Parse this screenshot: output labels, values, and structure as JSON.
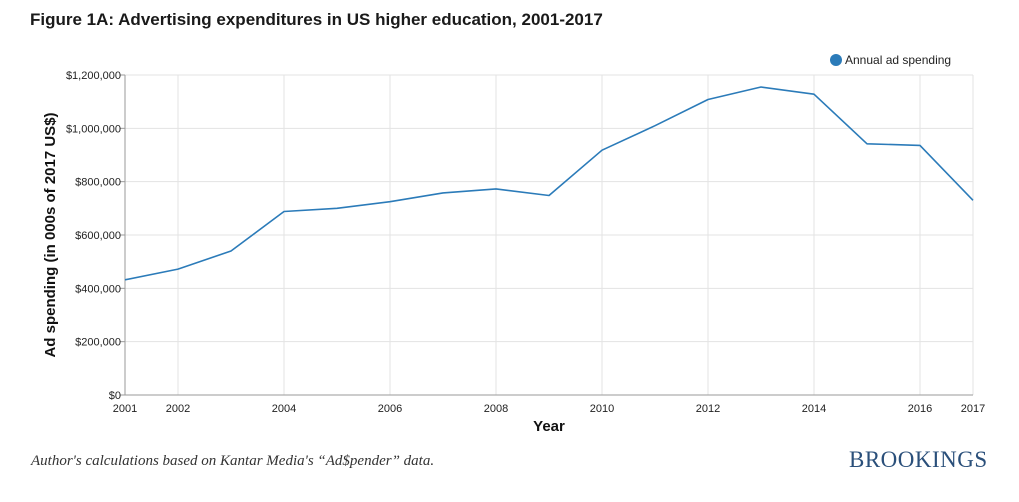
{
  "chart_data": {
    "type": "line",
    "title": "Figure 1A: Advertising expenditures in US higher education, 2001-2017",
    "xlabel": "Year",
    "ylabel": "Ad spending (in 000s of 2017 US$)",
    "xlim": [
      2001,
      2017
    ],
    "ylim": [
      0,
      1200000
    ],
    "x_ticks": [
      2001,
      2002,
      2004,
      2006,
      2008,
      2010,
      2012,
      2014,
      2016,
      2017
    ],
    "y_ticks": [
      0,
      200000,
      400000,
      600000,
      800000,
      1000000,
      1200000
    ],
    "y_tick_labels": [
      "$0",
      "$200,000",
      "$400,000",
      "$600,000",
      "$800,000",
      "$1,000,000",
      "$1,200,000"
    ],
    "grid": true,
    "legend_position": "top-right",
    "series": [
      {
        "name": "Annual ad spending",
        "color": "#2b7bb9",
        "x": [
          2001,
          2002,
          2003,
          2004,
          2005,
          2006,
          2007,
          2008,
          2009,
          2010,
          2011,
          2012,
          2013,
          2014,
          2015,
          2016,
          2017
        ],
        "values": [
          432000,
          472000,
          540000,
          688000,
          700000,
          725000,
          758000,
          773000,
          748000,
          918000,
          1010000,
          1108000,
          1155000,
          1128000,
          942000,
          936000,
          730000
        ]
      }
    ]
  },
  "footer": {
    "source": "Author's calculations based on Kantar Media's “Ad$pender” data.",
    "brand": "BROOKINGS"
  }
}
